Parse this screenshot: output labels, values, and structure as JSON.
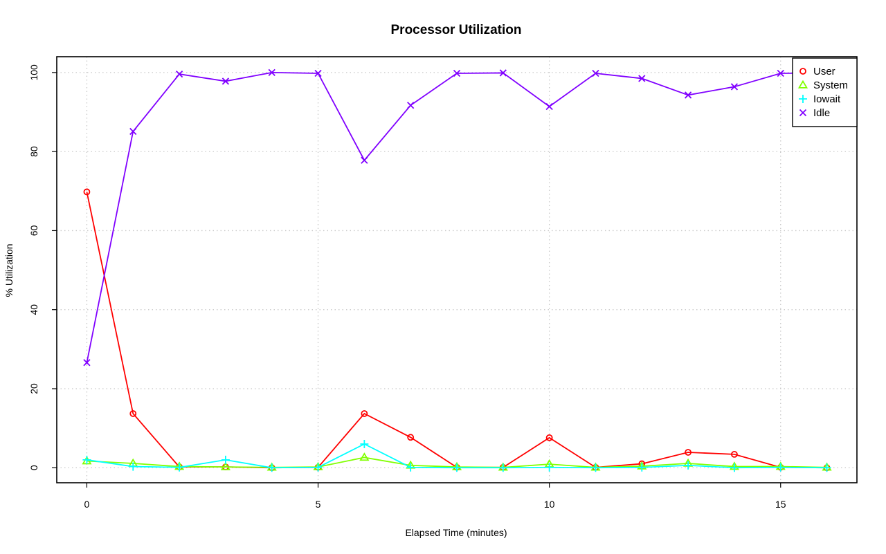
{
  "chart_data": {
    "type": "line",
    "title": "Processor Utilization",
    "xlabel": "Elapsed Time (minutes)",
    "ylabel": "% Utilization",
    "x": [
      0,
      1,
      2,
      3,
      4,
      5,
      6,
      7,
      8,
      9,
      10,
      11,
      12,
      13,
      14,
      15,
      16
    ],
    "xlim": [
      -0.65,
      16.65
    ],
    "ylim": [
      -3.8,
      104
    ],
    "xticks": [
      0,
      5,
      10,
      15
    ],
    "yticks": [
      0,
      20,
      40,
      60,
      80,
      100
    ],
    "grid": true,
    "legend_position": "top-right",
    "series": [
      {
        "name": "User",
        "color": "#ff0000",
        "marker": "circle",
        "values": [
          69.8,
          13.7,
          0.2,
          0.2,
          0.0,
          0.1,
          13.7,
          7.7,
          0.1,
          0.1,
          7.6,
          0.1,
          1.0,
          3.9,
          3.4,
          0.1,
          0.0
        ]
      },
      {
        "name": "System",
        "color": "#80ff00",
        "marker": "triangle",
        "values": [
          1.7,
          1.1,
          0.3,
          0.2,
          0.1,
          0.2,
          2.6,
          0.6,
          0.2,
          0.1,
          0.9,
          0.1,
          0.4,
          1.1,
          0.3,
          0.3,
          0.1
        ]
      },
      {
        "name": "Iowait",
        "color": "#00ffff",
        "marker": "plus",
        "values": [
          2.0,
          0.3,
          0.1,
          2.0,
          0.0,
          0.1,
          6.0,
          0.1,
          0.0,
          0.0,
          0.1,
          0.0,
          0.1,
          0.6,
          0.0,
          0.1,
          0.0
        ]
      },
      {
        "name": "Idle",
        "color": "#8000ff",
        "marker": "cross",
        "values": [
          26.6,
          85.1,
          99.6,
          97.8,
          100.0,
          99.8,
          77.8,
          91.7,
          99.8,
          99.9,
          91.4,
          99.8,
          98.5,
          94.3,
          96.4,
          99.8,
          99.9
        ]
      }
    ]
  }
}
